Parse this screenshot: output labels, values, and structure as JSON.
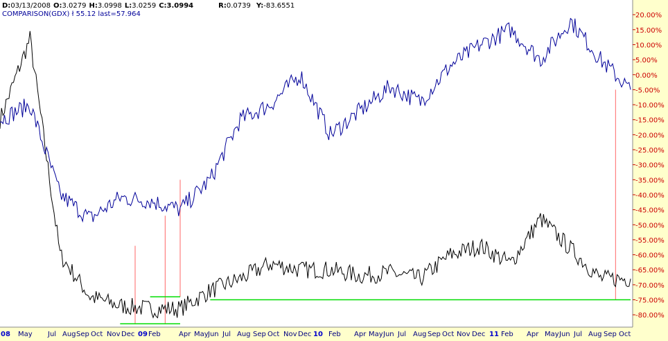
{
  "header": {
    "line1": [
      {
        "label": "D:",
        "value": "03/13/2008"
      },
      {
        "label": "O:",
        "value": "3.0279"
      },
      {
        "label": "H:",
        "value": "3.0998"
      },
      {
        "label": "L:",
        "value": "3.0259"
      },
      {
        "label": "C:",
        "value": "3.0994"
      },
      {
        "label": "R:",
        "value": "0.0739"
      },
      {
        "label": "Y:",
        "value": "-83.6551"
      }
    ],
    "line2": "COMPARISON(GDX) ł 55.12 last=57.964"
  },
  "colors": {
    "plot_bg": "#ffffff",
    "axis_bg": "#ffffcc",
    "comparison_line": "#000099",
    "primary_line": "#000000",
    "support_lines": "#00dd00",
    "markers": "#ff6666",
    "axis_text": "#cc0000",
    "month_text": "#000080",
    "year_text": "#0000cc"
  },
  "chart_data": {
    "type": "line",
    "ylim": [
      -83.6551,
      23.5
    ],
    "y_ticks": [
      "20.00%",
      "15.00%",
      "10.00%",
      "5.00%",
      "0.00%",
      "-5.00%",
      "-10.00%",
      "-15.00%",
      "-20.00%",
      "-25.00%",
      "-30.00%",
      "-35.00%",
      "-40.00%",
      "-45.00%",
      "-50.00%",
      "-55.00%",
      "-60.00%",
      "-65.00%",
      "-70.00%",
      "-75.00%",
      "-80.00%"
    ],
    "x_ticks": [
      {
        "label": "08",
        "year": true
      },
      {
        "label": "May",
        "year": false
      },
      {
        "label": "Jul",
        "year": false
      },
      {
        "label": "Aug",
        "year": false
      },
      {
        "label": "Sep",
        "year": false
      },
      {
        "label": "Oct",
        "year": false
      },
      {
        "label": "Nov",
        "year": false
      },
      {
        "label": "Dec",
        "year": false
      },
      {
        "label": "09",
        "year": true
      },
      {
        "label": "Feb",
        "year": false
      },
      {
        "label": "Apr",
        "year": false
      },
      {
        "label": "May",
        "year": false
      },
      {
        "label": "Jun",
        "year": false
      },
      {
        "label": "Jul",
        "year": false
      },
      {
        "label": "Aug",
        "year": false
      },
      {
        "label": "Sep",
        "year": false
      },
      {
        "label": "Oct",
        "year": false
      },
      {
        "label": "Nov",
        "year": false
      },
      {
        "label": "Dec",
        "year": false
      },
      {
        "label": "10",
        "year": true
      },
      {
        "label": "Feb",
        "year": false
      },
      {
        "label": "Apr",
        "year": false
      },
      {
        "label": "May",
        "year": false
      },
      {
        "label": "Jun",
        "year": false
      },
      {
        "label": "Jul",
        "year": false
      },
      {
        "label": "Aug",
        "year": false
      },
      {
        "label": "Sep",
        "year": false
      },
      {
        "label": "Oct",
        "year": false
      },
      {
        "label": "Nov",
        "year": false
      },
      {
        "label": "Dec",
        "year": false
      },
      {
        "label": "11",
        "year": true
      },
      {
        "label": "Feb",
        "year": false
      },
      {
        "label": "Apr",
        "year": false
      },
      {
        "label": "May",
        "year": false
      },
      {
        "label": "Jun",
        "year": false
      },
      {
        "label": "Jul",
        "year": false
      },
      {
        "label": "Aug",
        "year": false
      },
      {
        "label": "Sep",
        "year": false
      },
      {
        "label": "Oct",
        "year": false
      }
    ],
    "x": [
      0,
      2,
      4,
      6,
      8,
      10,
      12,
      14,
      16,
      18,
      20,
      22,
      24,
      26,
      28,
      30,
      32,
      34,
      36,
      38,
      40,
      42
    ],
    "series": [
      {
        "values": [
          -15,
          12,
          -60,
          -74,
          -77,
          -78,
          -78,
          -72,
          -68,
          -63,
          -65,
          -65,
          -67,
          -66,
          -68,
          -60,
          -57,
          -63,
          -48,
          -58,
          -68,
          -68
        ]
      },
      {
        "name": "COMPARISON(GDX)",
        "values": [
          -15,
          -10,
          -40,
          -48,
          -41,
          -42,
          -45,
          -35,
          -15,
          -10,
          0,
          -20,
          -12,
          -4,
          -9,
          3,
          10,
          15,
          5,
          18,
          5,
          -5
        ]
      }
    ],
    "support_levels": [
      {
        "y": -75.0,
        "x_start": 14,
        "x_end": 42
      },
      {
        "y": -83.0,
        "x_start": 8,
        "x_end": 12
      },
      {
        "y": -74.0,
        "x_start": 10,
        "x_end": 12
      }
    ],
    "marker_lines": [
      {
        "x": 9,
        "y_top": -57,
        "y_bottom": -83
      },
      {
        "x": 11,
        "y_top": -47,
        "y_bottom": -83
      },
      {
        "x": 12,
        "y_top": -35,
        "y_bottom": -74
      },
      {
        "x": 41,
        "y_top": -5,
        "y_bottom": -75
      }
    ],
    "grid": false,
    "legend": "top-left"
  }
}
